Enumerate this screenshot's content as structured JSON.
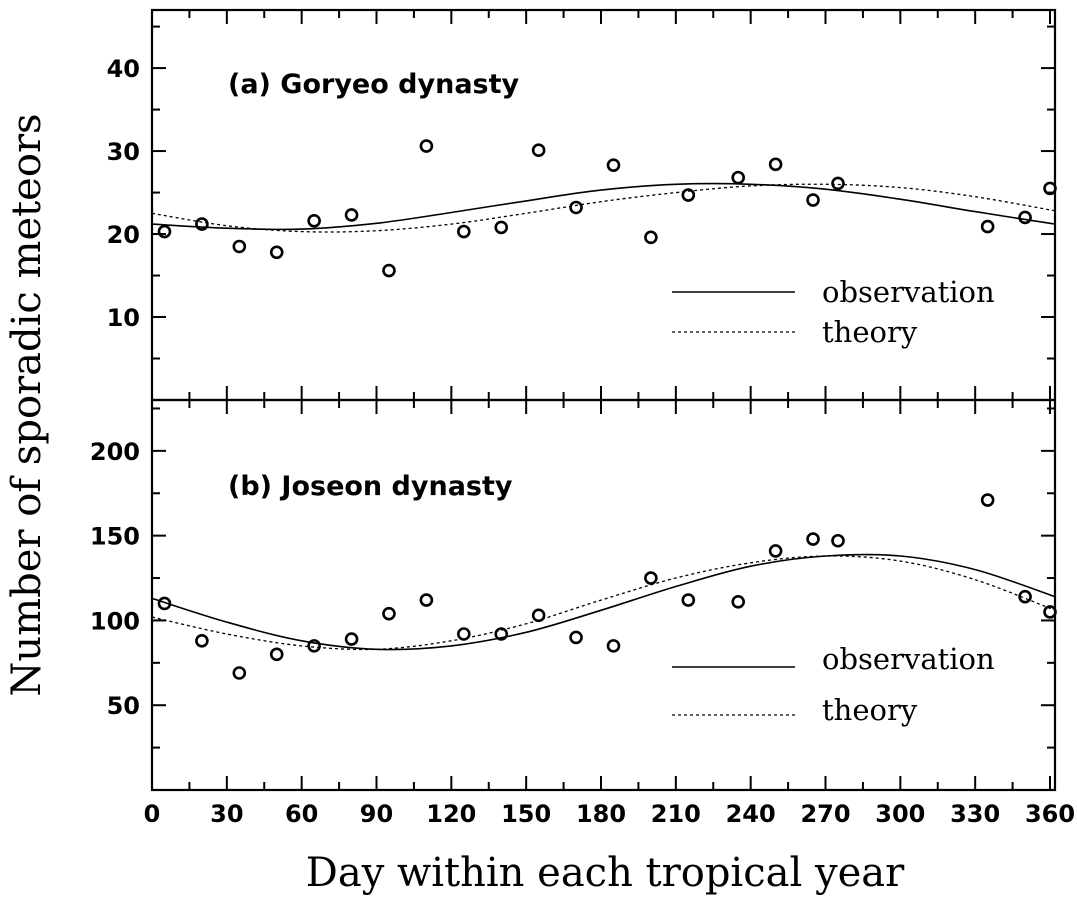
{
  "chart_data": [
    {
      "type": "scatter",
      "title": "(a) Goryeo dynasty",
      "xlabel": "Day within each tropical year",
      "ylabel": "Number of sporadic meteors",
      "xlim": [
        0,
        362
      ],
      "ylim": [
        0,
        47
      ],
      "yticks_labeled": [
        "10",
        "20",
        "30",
        "40"
      ],
      "points": {
        "x": [
          5,
          20,
          35,
          50,
          65,
          80,
          95,
          110,
          125,
          140,
          155,
          170,
          185,
          200,
          215,
          235,
          250,
          265,
          275,
          335,
          350,
          360
        ],
        "y": [
          20.3,
          21.2,
          18.5,
          17.8,
          21.6,
          22.3,
          15.6,
          30.6,
          20.3,
          20.8,
          30.1,
          23.2,
          28.3,
          19.6,
          24.7,
          26.8,
          28.4,
          24.1,
          26.1,
          20.9,
          22,
          25.5
        ]
      },
      "series": [
        {
          "name": "observation",
          "style": "solid",
          "x": [
            0,
            30,
            60,
            90,
            120,
            150,
            180,
            210,
            240,
            270,
            300,
            330,
            362
          ],
          "y": [
            21.2,
            20.7,
            20.6,
            21.3,
            22.6,
            24.0,
            25.3,
            26.0,
            26.0,
            25.4,
            24.2,
            22.7,
            21.2
          ]
        },
        {
          "name": "theory",
          "style": "dotted",
          "x": [
            0,
            30,
            60,
            90,
            120,
            150,
            180,
            210,
            240,
            270,
            300,
            330,
            362
          ],
          "y": [
            22.5,
            21.0,
            20.3,
            20.4,
            21.2,
            22.5,
            23.9,
            25.0,
            25.8,
            26.0,
            25.6,
            24.5,
            22.8
          ]
        }
      ],
      "legend": "right",
      "legend_labels": [
        "observation",
        "theory"
      ]
    },
    {
      "type": "scatter",
      "title": "(b) Joseon dynasty",
      "xlabel": "Day within each tropical year",
      "ylabel": "Number of sporadic meteors",
      "xlim": [
        0,
        362
      ],
      "ylim": [
        0,
        230
      ],
      "yticks_labeled": [
        "50",
        "100",
        "150",
        "200"
      ],
      "xticks_labeled": [
        "0",
        "30",
        "60",
        "90",
        "120",
        "150",
        "180",
        "210",
        "240",
        "270",
        "300",
        "330",
        "360"
      ],
      "points": {
        "x": [
          5,
          20,
          35,
          50,
          65,
          80,
          95,
          110,
          125,
          140,
          155,
          170,
          185,
          200,
          215,
          235,
          250,
          265,
          275,
          335,
          350,
          360
        ],
        "y": [
          110,
          88,
          69,
          80,
          85,
          89,
          104,
          112,
          92,
          92,
          103,
          90,
          85,
          125,
          112,
          111,
          141,
          148,
          147,
          171,
          114,
          105
        ]
      },
      "series": [
        {
          "name": "observation",
          "style": "solid",
          "x": [
            0,
            30,
            60,
            90,
            120,
            150,
            180,
            210,
            240,
            270,
            300,
            330,
            362
          ],
          "y": [
            113,
            99,
            88,
            83,
            85,
            93,
            106,
            120,
            132,
            138,
            138,
            130,
            114
          ]
        },
        {
          "name": "theory",
          "style": "dotted",
          "x": [
            0,
            30,
            60,
            90,
            120,
            150,
            180,
            210,
            240,
            270,
            300,
            330,
            362
          ],
          "y": [
            102,
            92,
            85,
            83,
            88,
            98,
            112,
            125,
            134,
            138,
            135,
            124,
            106
          ]
        }
      ],
      "legend": "right",
      "legend_labels": [
        "observation",
        "theory"
      ]
    }
  ]
}
